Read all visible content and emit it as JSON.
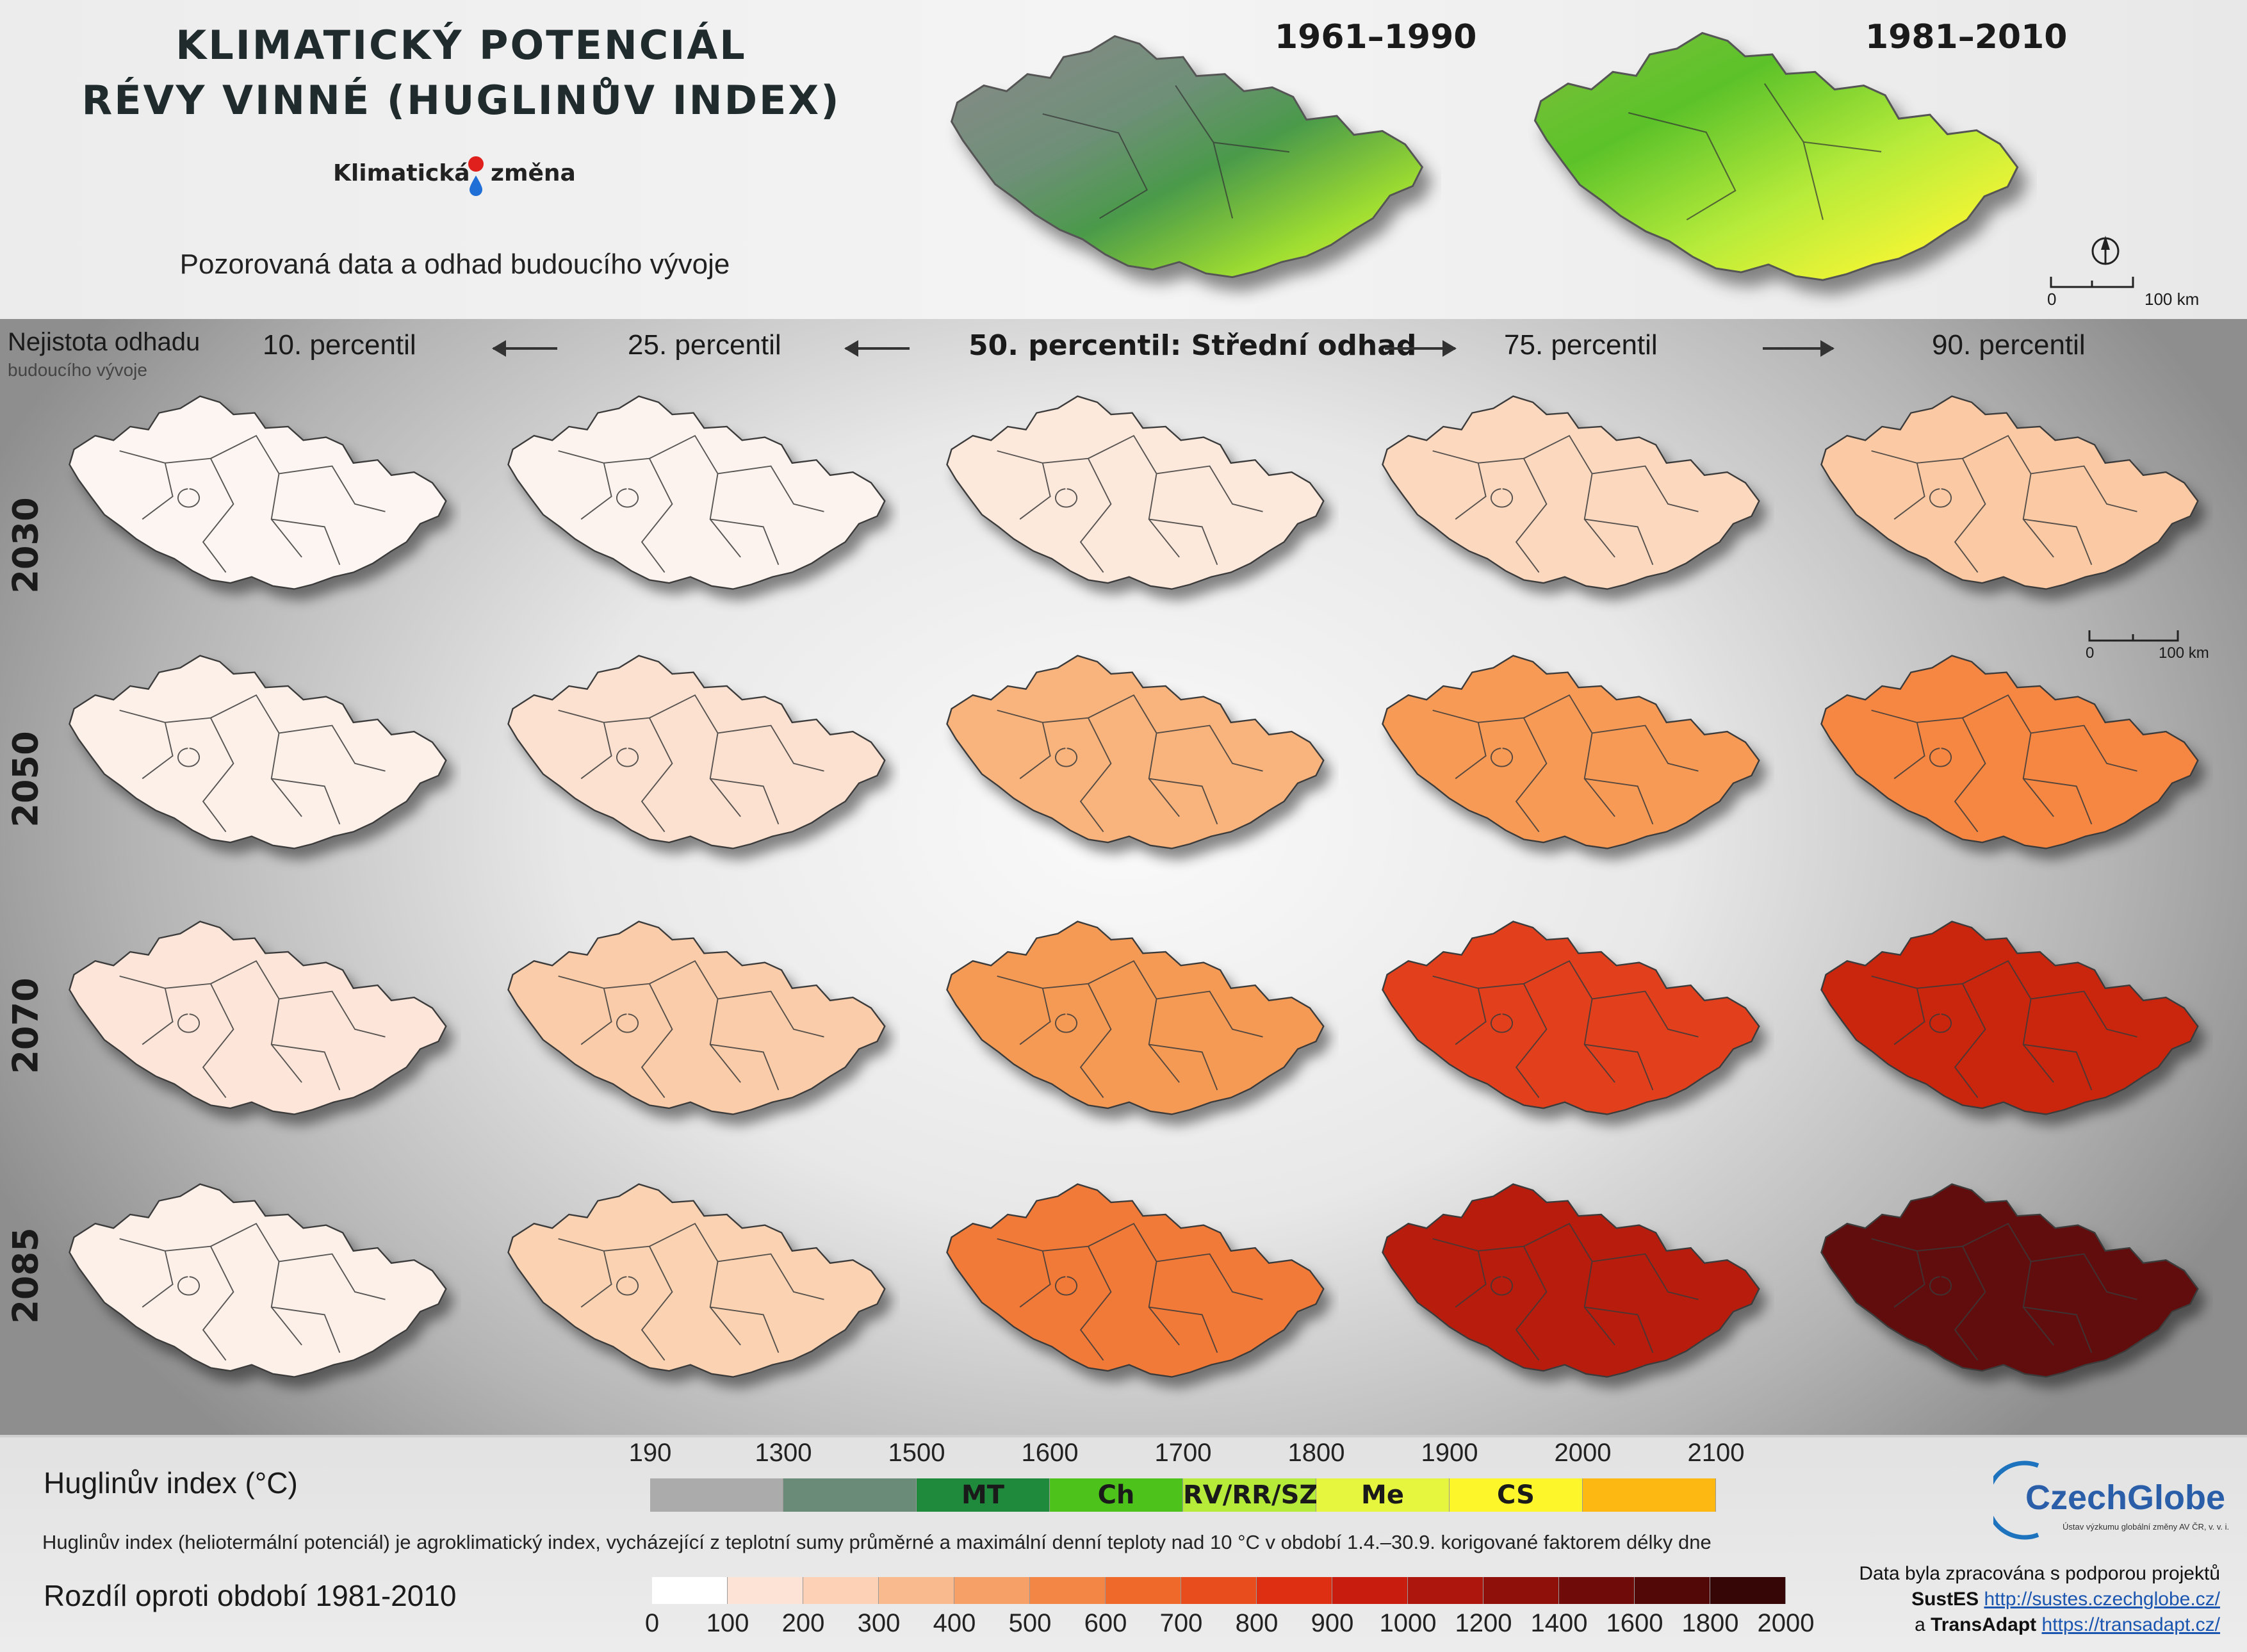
{
  "header": {
    "title_line1": "KLIMATICKÝ POTENCIÁL",
    "title_line2": "RÉVY VINNÉ (HUGLINŮV INDEX)",
    "brand_left": "Klimatická",
    "brand_right": "změna",
    "subtitle": "Pozorovaná data a odhad budoucího vývoje",
    "period_1": "1961–1990",
    "period_2": "1981–2010",
    "scale_zero": "0",
    "scale_km": "100 km"
  },
  "grid": {
    "uncertainty_line1": "Nejistota odhadu",
    "uncertainty_line2": "budoucího vývoje",
    "columns": [
      "10. percentil",
      "25. percentil",
      "50. percentil: Střední odhad",
      "75. percentil",
      "90. percentil"
    ],
    "rows": [
      "2030",
      "2050",
      "2070",
      "2085"
    ],
    "row_colors": [
      [
        "#fdf5f1",
        "#fdf3ee",
        "#fde8dc",
        "#fcd8bf",
        "#fbcaa4"
      ],
      [
        "#fdf0e9",
        "#fde1d0",
        "#f9b37c",
        "#f79a57",
        "#f58743"
      ],
      [
        "#fde6d9",
        "#facca9",
        "#f59a55",
        "#e2401d",
        "#c9250f"
      ],
      [
        "#fdf0e9",
        "#fbd3b3",
        "#f27a38",
        "#b81d10",
        "#62110c"
      ]
    ],
    "scale_zero": "0",
    "scale_km": "100 km"
  },
  "legend": {
    "huglin_title": "Huglinův index (°C)",
    "huglin_ticks": [
      "190",
      "1300",
      "1500",
      "1600",
      "1700",
      "1800",
      "1900",
      "2000",
      "2100"
    ],
    "huglin_segments": [
      {
        "label": "",
        "color": "#ababab"
      },
      {
        "label": "",
        "color": "#6a8b78"
      },
      {
        "label": "MT",
        "color": "#1f8a3c"
      },
      {
        "label": "Ch",
        "color": "#4cc21a"
      },
      {
        "label": "RV/RR/SZ",
        "color": "#b6eb3a"
      },
      {
        "label": "Me",
        "color": "#e6f53d"
      },
      {
        "label": "CS",
        "color": "#fcf62a"
      },
      {
        "label": "",
        "color": "#fdb812"
      }
    ],
    "description": "Huglinův index (heliotermální potenciál) je agroklimatický index, vycházející z teplotní sumy průměrné a maximální denní teploty nad 10 °C v období 1.4.–30.9. korigované faktorem délky dne",
    "diff_title": "Rozdíl oproti období 1981-2010",
    "diff_ticks": [
      "0",
      "100",
      "200",
      "300",
      "400",
      "500",
      "600",
      "700",
      "800",
      "900",
      "1000",
      "1200",
      "1400",
      "1600",
      "1800",
      "2000"
    ],
    "diff_colors": [
      "#ffffff",
      "#fde3d6",
      "#fcd1b5",
      "#f9ba8e",
      "#f6a068",
      "#f38644",
      "#ef6a2a",
      "#e84e1d",
      "#de2f13",
      "#c81c0e",
      "#ad160c",
      "#8f100a",
      "#6f0c09",
      "#520807",
      "#360505"
    ]
  },
  "credits": {
    "logo_text": "CzechGlobe",
    "logo_sub": "Ústav výzkumu globální změny AV ČR, v. v. i.",
    "line1": "Data byla zpracována s podporou projektů",
    "p1_name": "SustES",
    "p1_url": "http://sustes.czechglobe.cz/",
    "p2_prefix": "a",
    "p2_name": "TransAdapt",
    "p2_url": "https://transadapt.cz/"
  }
}
